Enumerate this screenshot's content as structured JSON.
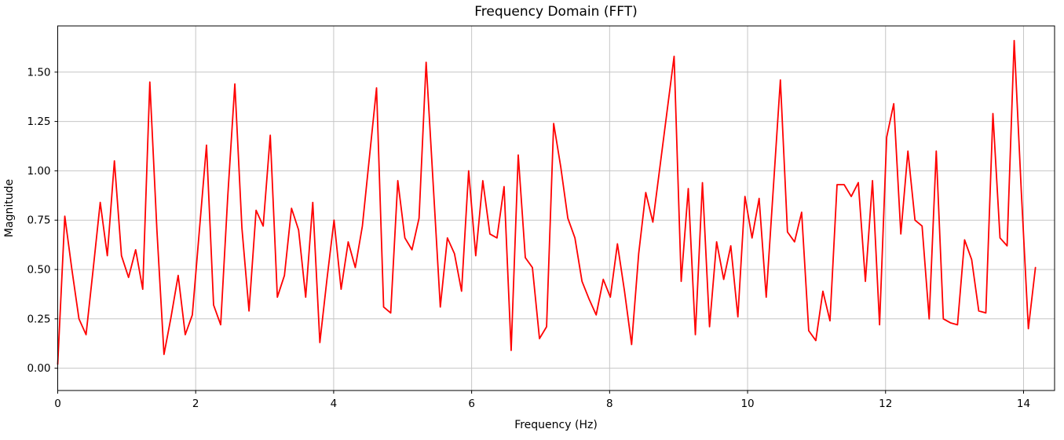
{
  "chart_data": {
    "type": "line",
    "title": "Frequency Domain (FFT)",
    "xlabel": "Frequency (Hz)",
    "ylabel": "Magnitude",
    "xlim": [
      0,
      14.45
    ],
    "ylim": [
      -0.113,
      1.734
    ],
    "x_ticks": [
      0,
      2,
      4,
      6,
      8,
      10,
      12,
      14
    ],
    "x_tick_labels": [
      "0",
      "2",
      "4",
      "6",
      "8",
      "10",
      "12",
      "14"
    ],
    "y_ticks": [
      0.0,
      0.25,
      0.5,
      0.75,
      1.0,
      1.25,
      1.5
    ],
    "y_tick_labels": [
      "0.00",
      "0.25",
      "0.50",
      "0.75",
      "1.00",
      "1.25",
      "1.50"
    ],
    "grid": true,
    "legend": "none",
    "line_color": "#ff0000",
    "grid_color": "#c6c6c6",
    "spine_color": "#000000",
    "x_start": 0,
    "x_step": 0.1027,
    "values": [
      0.02,
      0.77,
      0.5,
      0.25,
      0.17,
      0.5,
      0.84,
      0.57,
      1.05,
      0.57,
      0.46,
      0.6,
      0.4,
      1.45,
      0.7,
      0.07,
      0.26,
      0.47,
      0.17,
      0.27,
      0.7,
      1.13,
      0.32,
      0.22,
      0.87,
      1.44,
      0.71,
      0.29,
      0.8,
      0.72,
      1.18,
      0.36,
      0.47,
      0.81,
      0.7,
      0.36,
      0.84,
      0.13,
      0.45,
      0.75,
      0.4,
      0.64,
      0.51,
      0.72,
      1.07,
      1.42,
      0.31,
      0.28,
      0.95,
      0.66,
      0.6,
      0.76,
      1.55,
      0.93,
      0.31,
      0.66,
      0.58,
      0.39,
      1.0,
      0.57,
      0.95,
      0.68,
      0.66,
      0.92,
      0.09,
      1.08,
      0.56,
      0.51,
      0.15,
      0.21,
      1.24,
      1.02,
      0.76,
      0.66,
      0.44,
      0.35,
      0.27,
      0.45,
      0.36,
      0.63,
      0.39,
      0.12,
      0.58,
      0.89,
      0.74,
      1.02,
      1.3,
      1.58,
      0.44,
      0.91,
      0.17,
      0.94,
      0.21,
      0.64,
      0.45,
      0.62,
      0.26,
      0.87,
      0.66,
      0.86,
      0.36,
      0.91,
      1.46,
      0.69,
      0.64,
      0.79,
      0.19,
      0.14,
      0.39,
      0.24,
      0.93,
      0.93,
      0.87,
      0.94,
      0.44,
      0.95,
      0.22,
      1.17,
      1.34,
      0.68,
      1.1,
      0.75,
      0.72,
      0.25,
      1.1,
      0.25,
      0.23,
      0.22,
      0.65,
      0.55,
      0.29,
      0.28,
      1.29,
      0.66,
      0.62,
      1.66,
      0.9,
      0.2,
      0.51
    ]
  }
}
